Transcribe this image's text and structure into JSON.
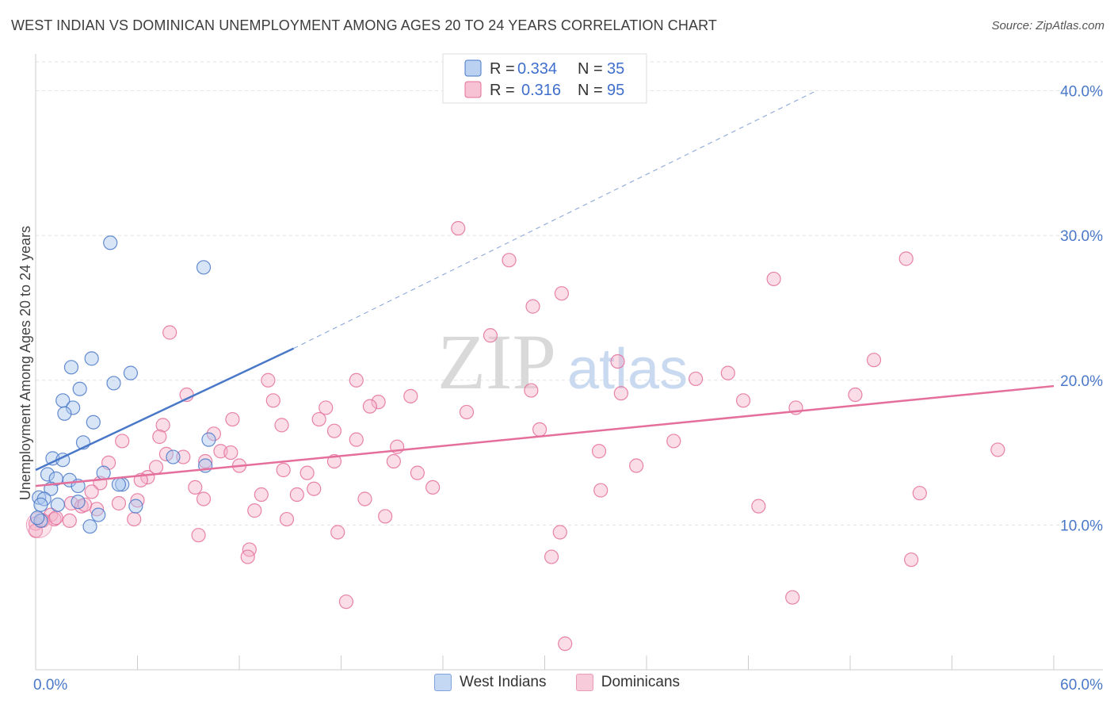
{
  "title": "WEST INDIAN VS DOMINICAN UNEMPLOYMENT AMONG AGES 20 TO 24 YEARS CORRELATION CHART",
  "source": "Source: ZipAtlas.com",
  "watermark": {
    "zip": "ZIP",
    "atlas": "atlas"
  },
  "colors": {
    "west_indians": "#4a78c8",
    "west_indians_fill": "#a9c6ee",
    "dominicans": "#e46f9b",
    "dominicans_fill": "#f5b3c9",
    "tick_label": "#4a78c8"
  },
  "legend": {
    "rows": [
      {
        "r_label": "R =",
        "r_value": "0.334",
        "n_label": "N =",
        "n_value": "35"
      },
      {
        "r_label": "R =",
        "r_value": "0.316",
        "n_label": "N =",
        "n_value": "95"
      }
    ]
  },
  "bottom_legend": [
    "West Indians",
    "Dominicans"
  ],
  "chart_data": {
    "type": "scatter",
    "title": "WEST INDIAN VS DOMINICAN UNEMPLOYMENT AMONG AGES 20 TO 24 YEARS CORRELATION CHART",
    "xlabel": "",
    "ylabel": "Unemployment Among Ages 20 to 24 years",
    "xlim": [
      0,
      60
    ],
    "ylim": [
      0,
      42
    ],
    "x_tick_labels": [
      "0.0%",
      "60.0%"
    ],
    "y_ticks": [
      10,
      20,
      30,
      40
    ],
    "y_tick_labels": [
      "10.0%",
      "20.0%",
      "30.0%",
      "40.0%"
    ],
    "grid": true,
    "series": [
      {
        "name": "West Indians",
        "r": 0.334,
        "n": 35,
        "trend": {
          "x0": 0,
          "y0": 13.8,
          "x1": 15.2,
          "y1": 22.2,
          "dashed_to_x": 46,
          "dashed_to_y": 40
        },
        "points": [
          [
            4.4,
            29.5
          ],
          [
            9.9,
            27.8
          ],
          [
            3.3,
            21.5
          ],
          [
            2.1,
            20.9
          ],
          [
            5.6,
            20.5
          ],
          [
            4.6,
            19.8
          ],
          [
            2.6,
            19.4
          ],
          [
            1.6,
            18.6
          ],
          [
            2.2,
            18.1
          ],
          [
            1.7,
            17.7
          ],
          [
            3.4,
            17.1
          ],
          [
            10.2,
            15.9
          ],
          [
            2.8,
            15.7
          ],
          [
            1.0,
            14.6
          ],
          [
            1.6,
            14.5
          ],
          [
            8.1,
            14.7
          ],
          [
            10.0,
            14.1
          ],
          [
            4.0,
            13.6
          ],
          [
            0.7,
            13.5
          ],
          [
            1.2,
            13.2
          ],
          [
            2.0,
            13.1
          ],
          [
            2.5,
            12.7
          ],
          [
            5.1,
            12.8
          ],
          [
            4.9,
            12.8
          ],
          [
            0.9,
            12.5
          ],
          [
            0.2,
            11.9
          ],
          [
            0.5,
            11.8
          ],
          [
            1.3,
            11.4
          ],
          [
            2.5,
            11.6
          ],
          [
            0.3,
            11.4
          ],
          [
            5.9,
            11.3
          ],
          [
            3.7,
            10.7
          ],
          [
            0.3,
            10.3
          ],
          [
            0.1,
            10.5
          ],
          [
            3.2,
            9.9
          ]
        ]
      },
      {
        "name": "Dominicans",
        "r": 0.316,
        "n": 95,
        "trend": {
          "x0": 0,
          "y0": 12.7,
          "x1": 60,
          "y1": 19.6
        },
        "points": [
          [
            24.9,
            30.5
          ],
          [
            27.9,
            28.3
          ],
          [
            51.3,
            28.4
          ],
          [
            43.5,
            27.0
          ],
          [
            31.0,
            26.0
          ],
          [
            29.3,
            25.1
          ],
          [
            7.9,
            23.3
          ],
          [
            26.8,
            23.1
          ],
          [
            34.3,
            21.3
          ],
          [
            49.4,
            21.4
          ],
          [
            40.8,
            20.5
          ],
          [
            38.9,
            20.1
          ],
          [
            13.7,
            20.0
          ],
          [
            18.9,
            20.0
          ],
          [
            29.2,
            19.3
          ],
          [
            8.9,
            19.0
          ],
          [
            34.5,
            19.1
          ],
          [
            48.3,
            19.0
          ],
          [
            22.1,
            18.9
          ],
          [
            14.0,
            18.6
          ],
          [
            20.2,
            18.5
          ],
          [
            19.7,
            18.2
          ],
          [
            17.1,
            18.1
          ],
          [
            41.7,
            18.6
          ],
          [
            44.8,
            18.1
          ],
          [
            25.4,
            17.8
          ],
          [
            11.6,
            17.3
          ],
          [
            16.7,
            17.3
          ],
          [
            7.5,
            16.9
          ],
          [
            14.5,
            16.9
          ],
          [
            29.7,
            16.6
          ],
          [
            17.6,
            16.5
          ],
          [
            10.5,
            16.3
          ],
          [
            7.3,
            16.1
          ],
          [
            5.1,
            15.8
          ],
          [
            18.9,
            15.9
          ],
          [
            37.6,
            15.8
          ],
          [
            21.3,
            15.4
          ],
          [
            10.9,
            15.1
          ],
          [
            11.5,
            15.0
          ],
          [
            33.2,
            15.1
          ],
          [
            56.7,
            15.2
          ],
          [
            7.7,
            14.9
          ],
          [
            8.7,
            14.7
          ],
          [
            10.0,
            14.4
          ],
          [
            17.6,
            14.4
          ],
          [
            21.1,
            14.4
          ],
          [
            4.3,
            14.3
          ],
          [
            7.1,
            14.0
          ],
          [
            12.0,
            14.1
          ],
          [
            35.4,
            14.1
          ],
          [
            14.6,
            13.8
          ],
          [
            16.0,
            13.6
          ],
          [
            22.5,
            13.6
          ],
          [
            6.6,
            13.3
          ],
          [
            6.2,
            13.1
          ],
          [
            3.8,
            12.9
          ],
          [
            9.4,
            12.6
          ],
          [
            16.4,
            12.5
          ],
          [
            23.4,
            12.6
          ],
          [
            13.3,
            12.1
          ],
          [
            15.4,
            12.1
          ],
          [
            33.3,
            12.4
          ],
          [
            52.1,
            12.2
          ],
          [
            3.3,
            12.3
          ],
          [
            9.9,
            11.8
          ],
          [
            19.4,
            11.8
          ],
          [
            6.0,
            11.7
          ],
          [
            4.9,
            11.5
          ],
          [
            2.1,
            11.5
          ],
          [
            2.7,
            11.3
          ],
          [
            42.6,
            11.3
          ],
          [
            12.9,
            11.0
          ],
          [
            3.6,
            11.1
          ],
          [
            0.9,
            10.7
          ],
          [
            14.8,
            10.4
          ],
          [
            20.6,
            10.6
          ],
          [
            1.1,
            10.4
          ],
          [
            2.0,
            10.3
          ],
          [
            5.8,
            10.4
          ],
          [
            0.0,
            10.1
          ],
          [
            0.4,
            10.3
          ],
          [
            1.2,
            10.5
          ],
          [
            9.6,
            9.3
          ],
          [
            17.8,
            9.5
          ],
          [
            30.9,
            9.5
          ],
          [
            12.6,
            8.3
          ],
          [
            12.5,
            7.8
          ],
          [
            30.4,
            7.8
          ],
          [
            51.6,
            7.6
          ],
          [
            18.3,
            4.7
          ],
          [
            44.6,
            5.0
          ],
          [
            31.2,
            1.8
          ],
          [
            0.0,
            9.6
          ],
          [
            2.9,
            11.4
          ]
        ]
      }
    ]
  }
}
